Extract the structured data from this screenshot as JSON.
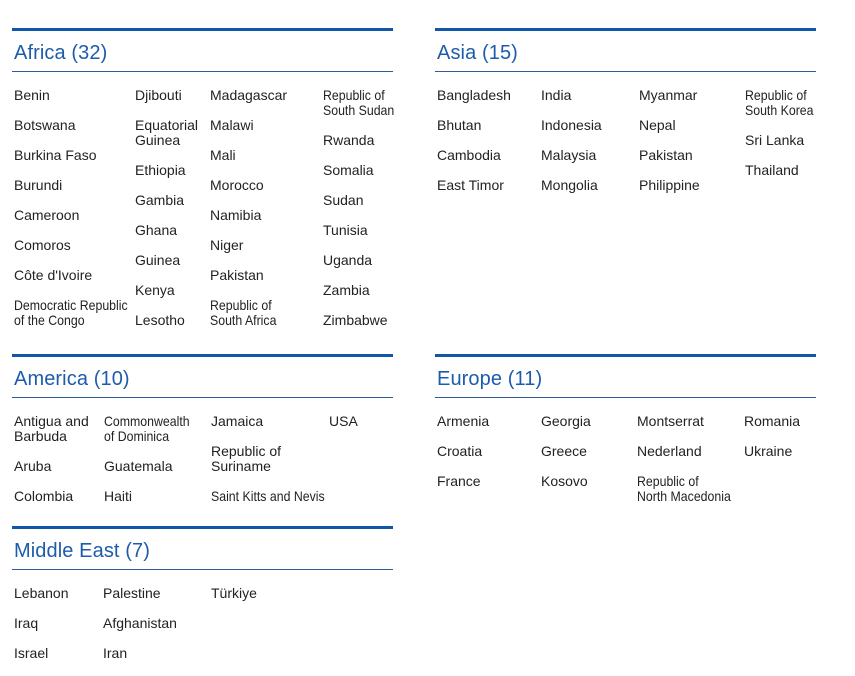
{
  "colors": {
    "accent_line": "#1157a8",
    "header_text": "#1d5cab",
    "divider": "#2e5c99",
    "country_text": "#222222",
    "page_bg": "#ffffff"
  },
  "sections": [
    {
      "id": "africa",
      "name": "Africa",
      "count": 32,
      "title": "Africa (32)",
      "columns": [
        [
          "Benin",
          "Botswana",
          "Burkina Faso",
          "Burundi",
          "Cameroon",
          "Comoros",
          "Côte d'Ivoire",
          "Democratic Republic\nof the Congo"
        ],
        [
          "Djibouti",
          "Equatorial\nGuinea",
          "Ethiopia",
          "Gambia",
          "Ghana",
          "Guinea",
          "Kenya",
          "Lesotho"
        ],
        [
          "Madagascar",
          "Malawi",
          "Mali",
          "Morocco",
          "Namibia",
          "Niger",
          "Pakistan",
          "Republic of\nSouth Africa"
        ],
        [
          "Republic of\nSouth Sudan",
          "Rwanda",
          "Somalia",
          "Sudan",
          "Tunisia",
          "Uganda",
          "Zambia",
          "Zimbabwe"
        ]
      ]
    },
    {
      "id": "asia",
      "name": "Asia",
      "count": 15,
      "title": "Asia (15)",
      "columns": [
        [
          "Bangladesh",
          "Bhutan",
          "Cambodia",
          "East Timor"
        ],
        [
          "India",
          "Indonesia",
          "Malaysia",
          "Mongolia"
        ],
        [
          "Myanmar",
          "Nepal",
          "Pakistan",
          "Philippine"
        ],
        [
          "Republic of\nSouth Korea",
          "Sri Lanka",
          "Thailand"
        ]
      ]
    },
    {
      "id": "america",
      "name": "America",
      "count": 10,
      "title": "America (10)",
      "columns": [
        [
          "Antigua and\nBarbuda",
          "Aruba",
          "Colombia"
        ],
        [
          "Commonwealth\nof Dominica",
          "Guatemala",
          "Haiti"
        ],
        [
          "Jamaica",
          "Republic of\nSuriname",
          "Saint Kitts and Nevis"
        ],
        [
          "USA"
        ]
      ]
    },
    {
      "id": "europe",
      "name": "Europe",
      "count": 11,
      "title": "Europe (11)",
      "columns": [
        [
          "Armenia",
          "Croatia",
          "France"
        ],
        [
          "Georgia",
          "Greece",
          "Kosovo"
        ],
        [
          "Montserrat",
          "Nederland",
          "Republic of\nNorth Macedonia"
        ],
        [
          "Romania",
          "Ukraine"
        ]
      ]
    },
    {
      "id": "middle-east",
      "name": "Middle East",
      "count": 7,
      "title": "Middle East (7)",
      "columns": [
        [
          "Lebanon",
          "Iraq",
          "Israel"
        ],
        [
          "Palestine",
          "Afghanistan",
          "Iran"
        ],
        [
          "Türkiye"
        ]
      ]
    }
  ]
}
